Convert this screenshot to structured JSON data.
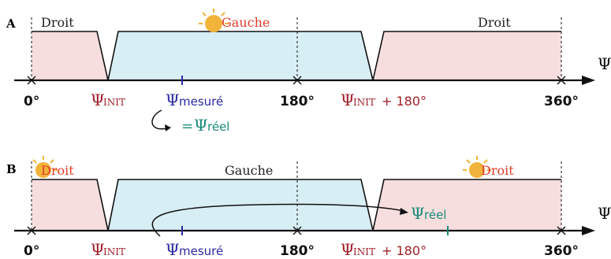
{
  "colors": {
    "axis": "#111111",
    "droit_fill": "#f7dede",
    "gauche_fill": "#d8eef5",
    "init": "#a0202a",
    "mesure": "#2a2aa0",
    "reel": "#1a8a7a",
    "gauche_highlight": "#e23b2b",
    "droit_highlight": "#e23b2b",
    "sun": "#f2b33a"
  },
  "panel_a": {
    "label": "A",
    "regions": [
      "Droit",
      "Gauche",
      "Droit"
    ],
    "annotation_equals": "=",
    "reel_symbol": "Ψ",
    "reel_sub": "réel"
  },
  "panel_b": {
    "label": "B",
    "regions": [
      "Droit",
      "Gauche",
      "Droit"
    ],
    "reel_symbol": "Ψ",
    "reel_sub": "réel"
  },
  "axis": {
    "symbol": "Ψ",
    "ticks": {
      "zero": "0°",
      "init_symbol": "Ψ",
      "init_sub": "INIT",
      "mesure_symbol": "Ψ",
      "mesure_sub": "mesuré",
      "one_eighty": "180°",
      "init_plus": "+ 180°",
      "three_sixty": "360°"
    }
  },
  "icons": [
    "sun-icon"
  ]
}
